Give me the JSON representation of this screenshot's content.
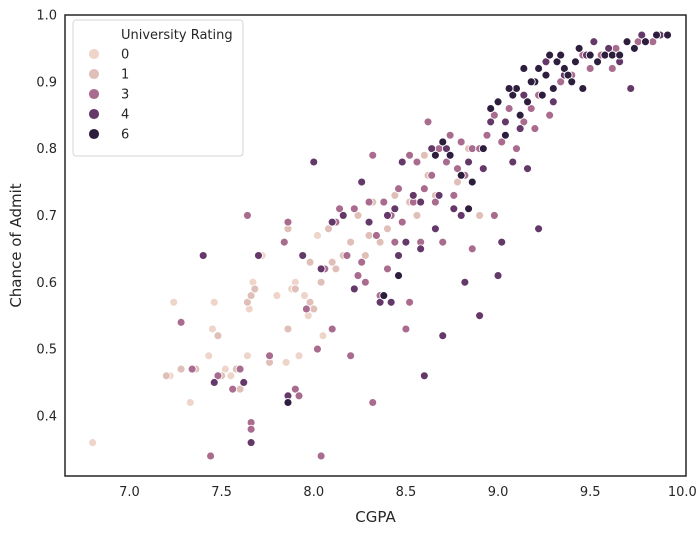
{
  "chart_data": {
    "type": "scatter",
    "xlabel": "CGPA",
    "ylabel": "Chance of Admit",
    "xlim": [
      6.65,
      10.02
    ],
    "ylim": [
      0.31,
      1.0
    ],
    "xticks": [
      7.0,
      7.5,
      8.0,
      8.5,
      9.0,
      9.5,
      10.0
    ],
    "xtick_labels": [
      "7.0",
      "7.5",
      "8.0",
      "8.5",
      "9.0",
      "9.5",
      "10.0"
    ],
    "yticks": [
      0.4,
      0.5,
      0.6,
      0.7,
      0.8,
      0.9,
      1.0
    ],
    "ytick_labels": [
      "0.4",
      "0.5",
      "0.6",
      "0.7",
      "0.8",
      "0.9",
      "1.0"
    ],
    "grid": false,
    "legend": {
      "title": "University Rating",
      "placement": "top-left",
      "entries": [
        {
          "label": "0",
          "color": "#eed4c9"
        },
        {
          "label": "1",
          "color": "#e0bfb8"
        },
        {
          "label": "3",
          "color": "#a96b8e"
        },
        {
          "label": "4",
          "color": "#643868"
        },
        {
          "label": "6",
          "color": "#2d1e3e"
        }
      ]
    },
    "series": [
      {
        "name": "0",
        "color": "#eed4c9",
        "points": [
          [
            6.8,
            0.36
          ],
          [
            7.22,
            0.46
          ],
          [
            7.24,
            0.57
          ],
          [
            7.33,
            0.42
          ],
          [
            7.43,
            0.49
          ],
          [
            7.46,
            0.57
          ],
          [
            7.45,
            0.53
          ],
          [
            7.52,
            0.47
          ],
          [
            7.55,
            0.46
          ],
          [
            7.64,
            0.49
          ],
          [
            7.65,
            0.56
          ],
          [
            7.67,
            0.6
          ],
          [
            7.8,
            0.58
          ],
          [
            7.9,
            0.6
          ],
          [
            7.95,
            0.58
          ],
          [
            7.85,
            0.48
          ],
          [
            7.92,
            0.49
          ],
          [
            8.02,
            0.67
          ],
          [
            7.72,
            0.64
          ],
          [
            8.05,
            0.52
          ],
          [
            7.97,
            0.55
          ],
          [
            7.88,
            0.59
          ]
        ]
      },
      {
        "name": "1",
        "color": "#e0bfb8",
        "points": [
          [
            7.2,
            0.46
          ],
          [
            7.28,
            0.47
          ],
          [
            7.36,
            0.47
          ],
          [
            7.48,
            0.52
          ],
          [
            7.5,
            0.46
          ],
          [
            7.58,
            0.47
          ],
          [
            7.6,
            0.44
          ],
          [
            7.64,
            0.57
          ],
          [
            7.66,
            0.58
          ],
          [
            7.68,
            0.59
          ],
          [
            7.76,
            0.48
          ],
          [
            7.86,
            0.53
          ],
          [
            7.9,
            0.59
          ],
          [
            7.98,
            0.57
          ],
          [
            8.0,
            0.56
          ],
          [
            8.04,
            0.6
          ],
          [
            8.08,
            0.68
          ],
          [
            8.12,
            0.62
          ],
          [
            8.16,
            0.64
          ],
          [
            8.2,
            0.66
          ],
          [
            8.24,
            0.7
          ],
          [
            8.28,
            0.64
          ],
          [
            8.32,
            0.72
          ],
          [
            8.36,
            0.66
          ],
          [
            8.4,
            0.68
          ],
          [
            8.44,
            0.73
          ],
          [
            8.48,
            0.69
          ],
          [
            8.52,
            0.72
          ],
          [
            8.56,
            0.7
          ],
          [
            8.62,
            0.76
          ],
          [
            8.66,
            0.73
          ],
          [
            8.72,
            0.78
          ],
          [
            8.78,
            0.75
          ],
          [
            8.84,
            0.8
          ],
          [
            8.9,
            0.7
          ],
          [
            7.86,
            0.68
          ],
          [
            7.94,
            0.64
          ],
          [
            8.1,
            0.63
          ],
          [
            8.3,
            0.67
          ],
          [
            8.46,
            0.74
          ],
          [
            8.6,
            0.79
          ],
          [
            7.98,
            0.63
          ]
        ]
      },
      {
        "name": "3",
        "color": "#a96b8e",
        "points": [
          [
            7.28,
            0.54
          ],
          [
            7.34,
            0.47
          ],
          [
            7.44,
            0.34
          ],
          [
            7.48,
            0.46
          ],
          [
            7.56,
            0.44
          ],
          [
            7.6,
            0.47
          ],
          [
            7.64,
            0.7
          ],
          [
            7.66,
            0.39
          ],
          [
            7.66,
            0.38
          ],
          [
            7.76,
            0.49
          ],
          [
            7.84,
            0.66
          ],
          [
            7.86,
            0.69
          ],
          [
            7.9,
            0.44
          ],
          [
            7.92,
            0.43
          ],
          [
            7.96,
            0.56
          ],
          [
            8.02,
            0.5
          ],
          [
            8.04,
            0.34
          ],
          [
            8.06,
            0.62
          ],
          [
            8.1,
            0.53
          ],
          [
            8.14,
            0.71
          ],
          [
            8.18,
            0.64
          ],
          [
            8.2,
            0.49
          ],
          [
            8.22,
            0.71
          ],
          [
            8.26,
            0.63
          ],
          [
            8.28,
            0.6
          ],
          [
            8.3,
            0.72
          ],
          [
            8.32,
            0.79
          ],
          [
            8.34,
            0.67
          ],
          [
            8.36,
            0.58
          ],
          [
            8.38,
            0.72
          ],
          [
            8.4,
            0.62
          ],
          [
            8.42,
            0.7
          ],
          [
            8.44,
            0.66
          ],
          [
            8.46,
            0.74
          ],
          [
            8.48,
            0.69
          ],
          [
            8.5,
            0.53
          ],
          [
            8.52,
            0.79
          ],
          [
            8.54,
            0.72
          ],
          [
            8.56,
            0.78
          ],
          [
            8.58,
            0.66
          ],
          [
            8.6,
            0.74
          ],
          [
            8.62,
            0.84
          ],
          [
            8.64,
            0.76
          ],
          [
            8.66,
            0.72
          ],
          [
            8.68,
            0.8
          ],
          [
            8.7,
            0.66
          ],
          [
            8.72,
            0.78
          ],
          [
            8.74,
            0.82
          ],
          [
            8.76,
            0.73
          ],
          [
            8.78,
            0.77
          ],
          [
            8.8,
            0.81
          ],
          [
            8.82,
            0.76
          ],
          [
            8.86,
            0.8
          ],
          [
            8.9,
            0.8
          ],
          [
            8.94,
            0.82
          ],
          [
            8.98,
            0.7
          ],
          [
            9.02,
            0.81
          ],
          [
            9.06,
            0.86
          ],
          [
            9.1,
            0.8
          ],
          [
            9.14,
            0.84
          ],
          [
            9.18,
            0.86
          ],
          [
            9.22,
            0.88
          ],
          [
            9.28,
            0.85
          ],
          [
            9.34,
            0.9
          ],
          [
            9.4,
            0.91
          ],
          [
            9.46,
            0.94
          ],
          [
            9.5,
            0.92
          ],
          [
            9.56,
            0.94
          ],
          [
            9.64,
            0.95
          ],
          [
            9.7,
            0.96
          ],
          [
            9.76,
            0.96
          ],
          [
            9.84,
            0.96
          ],
          [
            8.32,
            0.42
          ],
          [
            8.52,
            0.57
          ],
          [
            8.86,
            0.65
          ],
          [
            8.24,
            0.61
          ],
          [
            8.12,
            0.69
          ],
          [
            9.2,
            0.83
          ],
          [
            8.98,
            0.85
          ],
          [
            9.62,
            0.92
          ]
        ]
      },
      {
        "name": "4",
        "color": "#643868",
        "points": [
          [
            7.4,
            0.64
          ],
          [
            7.46,
            0.45
          ],
          [
            7.62,
            0.45
          ],
          [
            7.66,
            0.36
          ],
          [
            7.7,
            0.64
          ],
          [
            7.86,
            0.43
          ],
          [
            7.94,
            0.64
          ],
          [
            8.0,
            0.78
          ],
          [
            8.04,
            0.62
          ],
          [
            8.1,
            0.69
          ],
          [
            8.16,
            0.7
          ],
          [
            8.22,
            0.59
          ],
          [
            8.26,
            0.75
          ],
          [
            8.3,
            0.69
          ],
          [
            8.36,
            0.57
          ],
          [
            8.4,
            0.7
          ],
          [
            8.42,
            0.57
          ],
          [
            8.46,
            0.64
          ],
          [
            8.48,
            0.78
          ],
          [
            8.5,
            0.66
          ],
          [
            8.54,
            0.73
          ],
          [
            8.58,
            0.65
          ],
          [
            8.6,
            0.46
          ],
          [
            8.66,
            0.68
          ],
          [
            8.68,
            0.73
          ],
          [
            8.7,
            0.52
          ],
          [
            8.72,
            0.8
          ],
          [
            8.76,
            0.71
          ],
          [
            8.8,
            0.7
          ],
          [
            8.84,
            0.78
          ],
          [
            8.9,
            0.55
          ],
          [
            8.92,
            0.77
          ],
          [
            8.96,
            0.84
          ],
          [
            9.0,
            0.61
          ],
          [
            9.02,
            0.66
          ],
          [
            9.04,
            0.84
          ],
          [
            9.08,
            0.78
          ],
          [
            9.12,
            0.83
          ],
          [
            9.16,
            0.77
          ],
          [
            9.22,
            0.68
          ],
          [
            9.26,
            0.93
          ],
          [
            9.3,
            0.87
          ],
          [
            9.36,
            0.91
          ],
          [
            9.42,
            0.93
          ],
          [
            9.48,
            0.94
          ],
          [
            9.52,
            0.96
          ],
          [
            9.6,
            0.95
          ],
          [
            9.66,
            0.93
          ],
          [
            9.72,
            0.89
          ],
          [
            9.78,
            0.97
          ],
          [
            9.88,
            0.97
          ],
          [
            8.82,
            0.6
          ],
          [
            8.58,
            0.72
          ],
          [
            9.14,
            0.88
          ],
          [
            8.64,
            0.8
          ],
          [
            8.44,
            0.71
          ]
        ]
      },
      {
        "name": "6",
        "color": "#2d1e3e",
        "points": [
          [
            7.86,
            0.42
          ],
          [
            8.38,
            0.58
          ],
          [
            8.46,
            0.61
          ],
          [
            8.66,
            0.79
          ],
          [
            8.7,
            0.81
          ],
          [
            8.74,
            0.79
          ],
          [
            8.84,
            0.71
          ],
          [
            8.86,
            0.75
          ],
          [
            8.92,
            0.8
          ],
          [
            8.96,
            0.86
          ],
          [
            9.0,
            0.87
          ],
          [
            9.04,
            0.82
          ],
          [
            9.08,
            0.88
          ],
          [
            9.1,
            0.89
          ],
          [
            9.12,
            0.85
          ],
          [
            9.16,
            0.87
          ],
          [
            9.2,
            0.9
          ],
          [
            9.22,
            0.92
          ],
          [
            9.24,
            0.88
          ],
          [
            9.26,
            0.91
          ],
          [
            9.28,
            0.94
          ],
          [
            9.3,
            0.89
          ],
          [
            9.32,
            0.93
          ],
          [
            9.36,
            0.92
          ],
          [
            9.38,
            0.91
          ],
          [
            9.4,
            0.9
          ],
          [
            9.42,
            0.93
          ],
          [
            9.46,
            0.89
          ],
          [
            9.5,
            0.94
          ],
          [
            9.54,
            0.93
          ],
          [
            9.58,
            0.94
          ],
          [
            9.62,
            0.94
          ],
          [
            9.66,
            0.94
          ],
          [
            9.7,
            0.96
          ],
          [
            9.74,
            0.95
          ],
          [
            9.8,
            0.96
          ],
          [
            9.86,
            0.97
          ],
          [
            9.92,
            0.97
          ],
          [
            8.8,
            0.76
          ],
          [
            9.06,
            0.89
          ],
          [
            9.14,
            0.92
          ],
          [
            9.34,
            0.94
          ],
          [
            9.18,
            0.9
          ],
          [
            9.44,
            0.95
          ]
        ]
      }
    ]
  }
}
